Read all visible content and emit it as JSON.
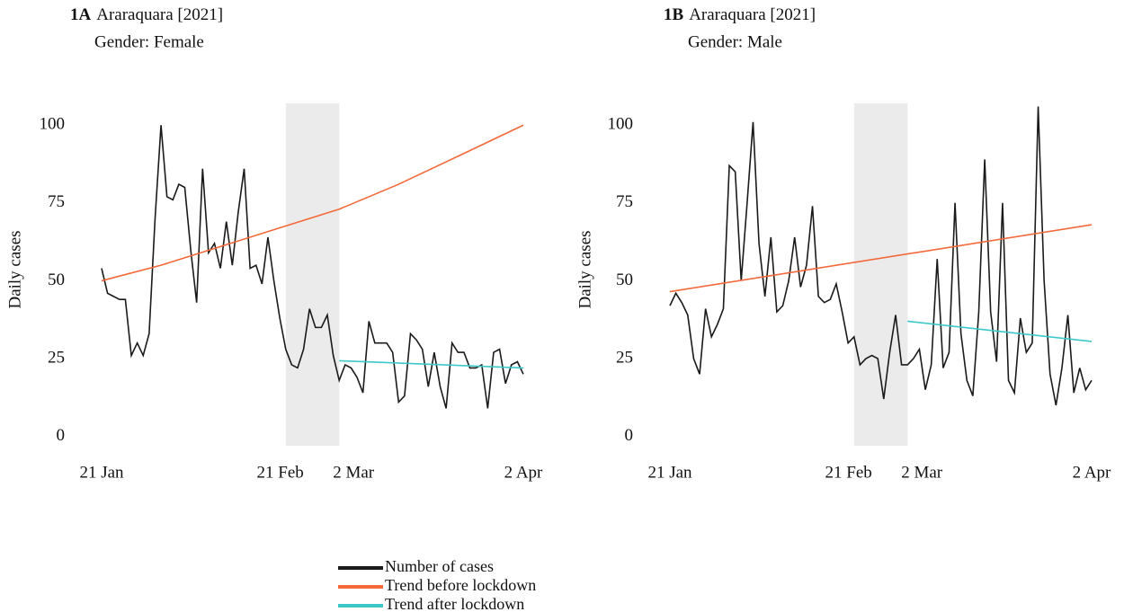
{
  "chart_data": [
    {
      "type": "line",
      "panel_label": "1A",
      "title": "Araraquara [2021]",
      "subtitle": "Gender: Female",
      "y_label": "Daily cases",
      "x": [
        "21 Jan",
        "22 Jan",
        "23 Jan",
        "24 Jan",
        "25 Jan",
        "26 Jan",
        "27 Jan",
        "28 Jan",
        "29 Jan",
        "30 Jan",
        "31 Jan",
        "1 Feb",
        "2 Feb",
        "3 Feb",
        "4 Feb",
        "5 Feb",
        "6 Feb",
        "7 Feb",
        "8 Feb",
        "9 Feb",
        "10 Feb",
        "11 Feb",
        "12 Feb",
        "13 Feb",
        "14 Feb",
        "15 Feb",
        "16 Feb",
        "17 Feb",
        "18 Feb",
        "19 Feb",
        "20 Feb",
        "21 Feb",
        "22 Feb",
        "23 Feb",
        "24 Feb",
        "25 Feb",
        "26 Feb",
        "27 Feb",
        "28 Feb",
        "1 Mar",
        "2 Mar",
        "3 Mar",
        "4 Mar",
        "5 Mar",
        "6 Mar",
        "7 Mar",
        "8 Mar",
        "9 Mar",
        "10 Mar",
        "11 Mar",
        "12 Mar",
        "13 Mar",
        "14 Mar",
        "15 Mar",
        "16 Mar",
        "17 Mar",
        "18 Mar",
        "19 Mar",
        "20 Mar",
        "21 Mar",
        "22 Mar",
        "23 Mar",
        "24 Mar",
        "25 Mar",
        "26 Mar",
        "27 Mar",
        "28 Mar",
        "29 Mar",
        "30 Mar",
        "31 Mar",
        "1 Apr",
        "2 Apr"
      ],
      "xticks": [
        "21 Jan",
        "21 Feb",
        "2 Mar",
        "2 Apr"
      ],
      "shaded_region": [
        "21 Feb",
        "2 Mar"
      ],
      "shade_color": "#ebebeb",
      "ylim": [
        -3,
        107
      ],
      "yticks": [
        0,
        25,
        50,
        75,
        100
      ],
      "series": [
        {
          "name": "Number of cases",
          "color": "#1a1a1a",
          "values": [
            54,
            46,
            45,
            44,
            44,
            26,
            30,
            26,
            33,
            70,
            100,
            77,
            76,
            81,
            80,
            60,
            43,
            86,
            59,
            62,
            54,
            69,
            55,
            72,
            86,
            54,
            55,
            49,
            64,
            50,
            38,
            28,
            23,
            22,
            28,
            41,
            35,
            35,
            39,
            26,
            18,
            23,
            22,
            19,
            14,
            37,
            30,
            30,
            30,
            27,
            11,
            13,
            33,
            31,
            28,
            16,
            27,
            16,
            9,
            30,
            27,
            27,
            22,
            22,
            23,
            9,
            27,
            28,
            17,
            23,
            24,
            20
          ]
        },
        {
          "name": "Trend before lockdown",
          "color": "#f4683a",
          "x": [
            "21 Jan",
            "31 Jan",
            "10 Feb",
            "20 Feb",
            "2 Mar",
            "12 Mar",
            "22 Mar",
            "2 Apr"
          ],
          "values": [
            50,
            55,
            61,
            67,
            73,
            81,
            90,
            100
          ]
        },
        {
          "name": "Trend after lockdown",
          "color": "#3cc8c8",
          "x": [
            "2 Mar",
            "2 Apr"
          ],
          "values": [
            24.3,
            22
          ]
        }
      ]
    },
    {
      "type": "line",
      "panel_label": "1B",
      "title": "Araraquara [2021]",
      "subtitle": "Gender: Male",
      "y_label": "Daily cases",
      "x": [
        "21 Jan",
        "22 Jan",
        "23 Jan",
        "24 Jan",
        "25 Jan",
        "26 Jan",
        "27 Jan",
        "28 Jan",
        "29 Jan",
        "30 Jan",
        "31 Jan",
        "1 Feb",
        "2 Feb",
        "3 Feb",
        "4 Feb",
        "5 Feb",
        "6 Feb",
        "7 Feb",
        "8 Feb",
        "9 Feb",
        "10 Feb",
        "11 Feb",
        "12 Feb",
        "13 Feb",
        "14 Feb",
        "15 Feb",
        "16 Feb",
        "17 Feb",
        "18 Feb",
        "19 Feb",
        "20 Feb",
        "21 Feb",
        "22 Feb",
        "23 Feb",
        "24 Feb",
        "25 Feb",
        "26 Feb",
        "27 Feb",
        "28 Feb",
        "1 Mar",
        "2 Mar",
        "3 Mar",
        "4 Mar",
        "5 Mar",
        "6 Mar",
        "7 Mar",
        "8 Mar",
        "9 Mar",
        "10 Mar",
        "11 Mar",
        "12 Mar",
        "13 Mar",
        "14 Mar",
        "15 Mar",
        "16 Mar",
        "17 Mar",
        "18 Mar",
        "19 Mar",
        "20 Mar",
        "21 Mar",
        "22 Mar",
        "23 Mar",
        "24 Mar",
        "25 Mar",
        "26 Mar",
        "27 Mar",
        "28 Mar",
        "29 Mar",
        "30 Mar",
        "31 Mar",
        "1 Apr",
        "2 Apr"
      ],
      "xticks": [
        "21 Jan",
        "21 Feb",
        "2 Mar",
        "2 Apr"
      ],
      "shaded_region": [
        "21 Feb",
        "2 Mar"
      ],
      "shade_color": "#ebebeb",
      "ylim": [
        -3,
        107
      ],
      "yticks": [
        0,
        25,
        50,
        75,
        100
      ],
      "series": [
        {
          "name": "Number of cases",
          "color": "#1a1a1a",
          "values": [
            42,
            46,
            43,
            39,
            25,
            20,
            41,
            32,
            36,
            41,
            87,
            85,
            50,
            75,
            101,
            62,
            45,
            64,
            40,
            42,
            50,
            64,
            48,
            55,
            74,
            45,
            43,
            44,
            49,
            40,
            30,
            32,
            23,
            25,
            26,
            25,
            12,
            27,
            39,
            23,
            23,
            25,
            28,
            15,
            23,
            57,
            22,
            27,
            75,
            33,
            18,
            13,
            40,
            89,
            40,
            24,
            75,
            18,
            14,
            38,
            27,
            30,
            106,
            50,
            20,
            10,
            22,
            39,
            14,
            22,
            15,
            18
          ]
        },
        {
          "name": "Trend before lockdown",
          "color": "#f4683a",
          "x": [
            "21 Jan",
            "2 Apr"
          ],
          "values": [
            46.5,
            68
          ]
        },
        {
          "name": "Trend after lockdown",
          "color": "#3cc8c8",
          "x": [
            "2 Mar",
            "2 Apr"
          ],
          "values": [
            37,
            30.5
          ]
        }
      ]
    }
  ]
}
